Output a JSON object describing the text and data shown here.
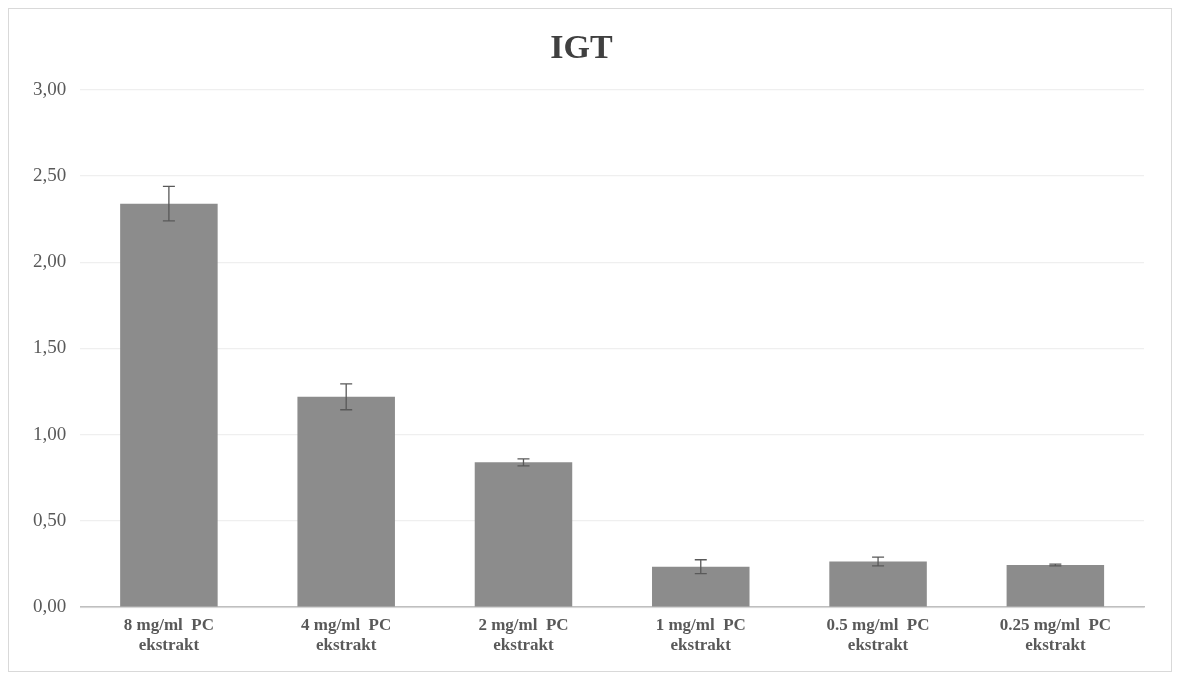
{
  "chart_data": {
    "type": "bar",
    "title": "IGT",
    "categories": [
      "8 mg/ml  PC ekstrakt",
      "4 mg/ml  PC ekstrakt",
      "2 mg/ml  PC ekstrakt",
      "1 mg/ml  PC ekstrakt",
      "0.5 mg/ml  PC ekstrakt",
      "0.25 mg/ml  PC ekstrakt"
    ],
    "values": [
      2.34,
      1.22,
      0.84,
      0.235,
      0.265,
      0.245
    ],
    "errors": [
      0.1,
      0.075,
      0.02,
      0.04,
      0.025,
      0.005
    ],
    "color": "#8c8c8c",
    "ylim": [
      0,
      3
    ],
    "yticks": [
      {
        "value": 0,
        "label": "0,00"
      },
      {
        "value": 0.5,
        "label": "0,50"
      },
      {
        "value": 1,
        "label": "1,00"
      },
      {
        "value": 1.5,
        "label": "1,50"
      },
      {
        "value": 2,
        "label": "2,00"
      },
      {
        "value": 2.5,
        "label": "2,50"
      },
      {
        "value": 3,
        "label": "3,00"
      }
    ],
    "grid": "y",
    "legend": false
  }
}
